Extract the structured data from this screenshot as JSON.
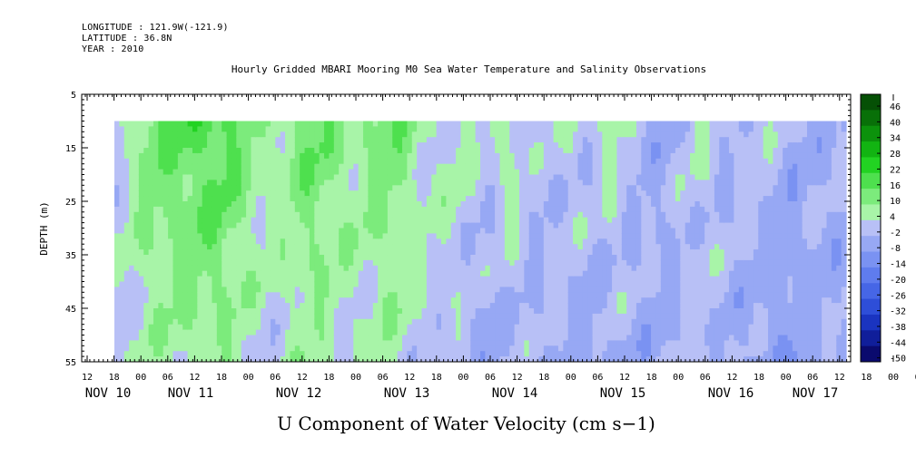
{
  "header": {
    "longitude": "LONGITUDE : 121.9W(-121.9)",
    "latitude": "LATITUDE : 36.8N",
    "year": "YEAR : 2010"
  },
  "chart_data": {
    "type": "heatmap",
    "title": "Hourly Gridded MBARI Mooring M0 Sea Water Temperature and Salinity Observations",
    "xlabel": "U Component of Water Velocity (cm s−1)",
    "ylabel": "DEPTH (m)",
    "ylim": [
      55,
      5
    ],
    "y_ticks": [
      "5",
      "15",
      "25",
      "35",
      "45",
      "55"
    ],
    "x_hour_ticks": [
      "12",
      "18",
      "00",
      "06",
      "12",
      "18",
      "00",
      "06",
      "12",
      "18",
      "00",
      "06",
      "12",
      "18",
      "00",
      "06",
      "12",
      "18",
      "00",
      "06",
      "12",
      "18",
      "00",
      "06",
      "12",
      "18",
      "00",
      "06",
      "12",
      "18",
      "00",
      "06",
      "12"
    ],
    "x_date_labels": [
      "NOV 10",
      "NOV 11",
      "NOV 12",
      "NOV 13",
      "NOV 14",
      "NOV 15",
      "NOV 16",
      "NOV 17"
    ],
    "data_depth_range_m": [
      10,
      55
    ],
    "data_time_range": [
      "NOV 10 18:00",
      "NOV 17 12:00"
    ],
    "colorbar": {
      "levels": [
        -50,
        -44,
        -38,
        -32,
        -26,
        -20,
        -14,
        -8,
        -2,
        4,
        10,
        16,
        22,
        28,
        34,
        40,
        46
      ],
      "labels": [
        "46",
        "40",
        "34",
        "28",
        "22",
        "16",
        "10",
        "4",
        "-2",
        "-8",
        "-14",
        "-20",
        "-26",
        "-32",
        "-38",
        "-44",
        "-50"
      ],
      "colors": [
        "#0a0a6e",
        "#101e9a",
        "#1a34c0",
        "#2e4ed8",
        "#4666e6",
        "#5f7cee",
        "#7a92f2",
        "#97a8f4",
        "#b8c0f6",
        "#a8f4a8",
        "#7ceb7c",
        "#4ee04e",
        "#22d322",
        "#12b412",
        "#0c920c",
        "#087008",
        "#055005"
      ]
    }
  }
}
